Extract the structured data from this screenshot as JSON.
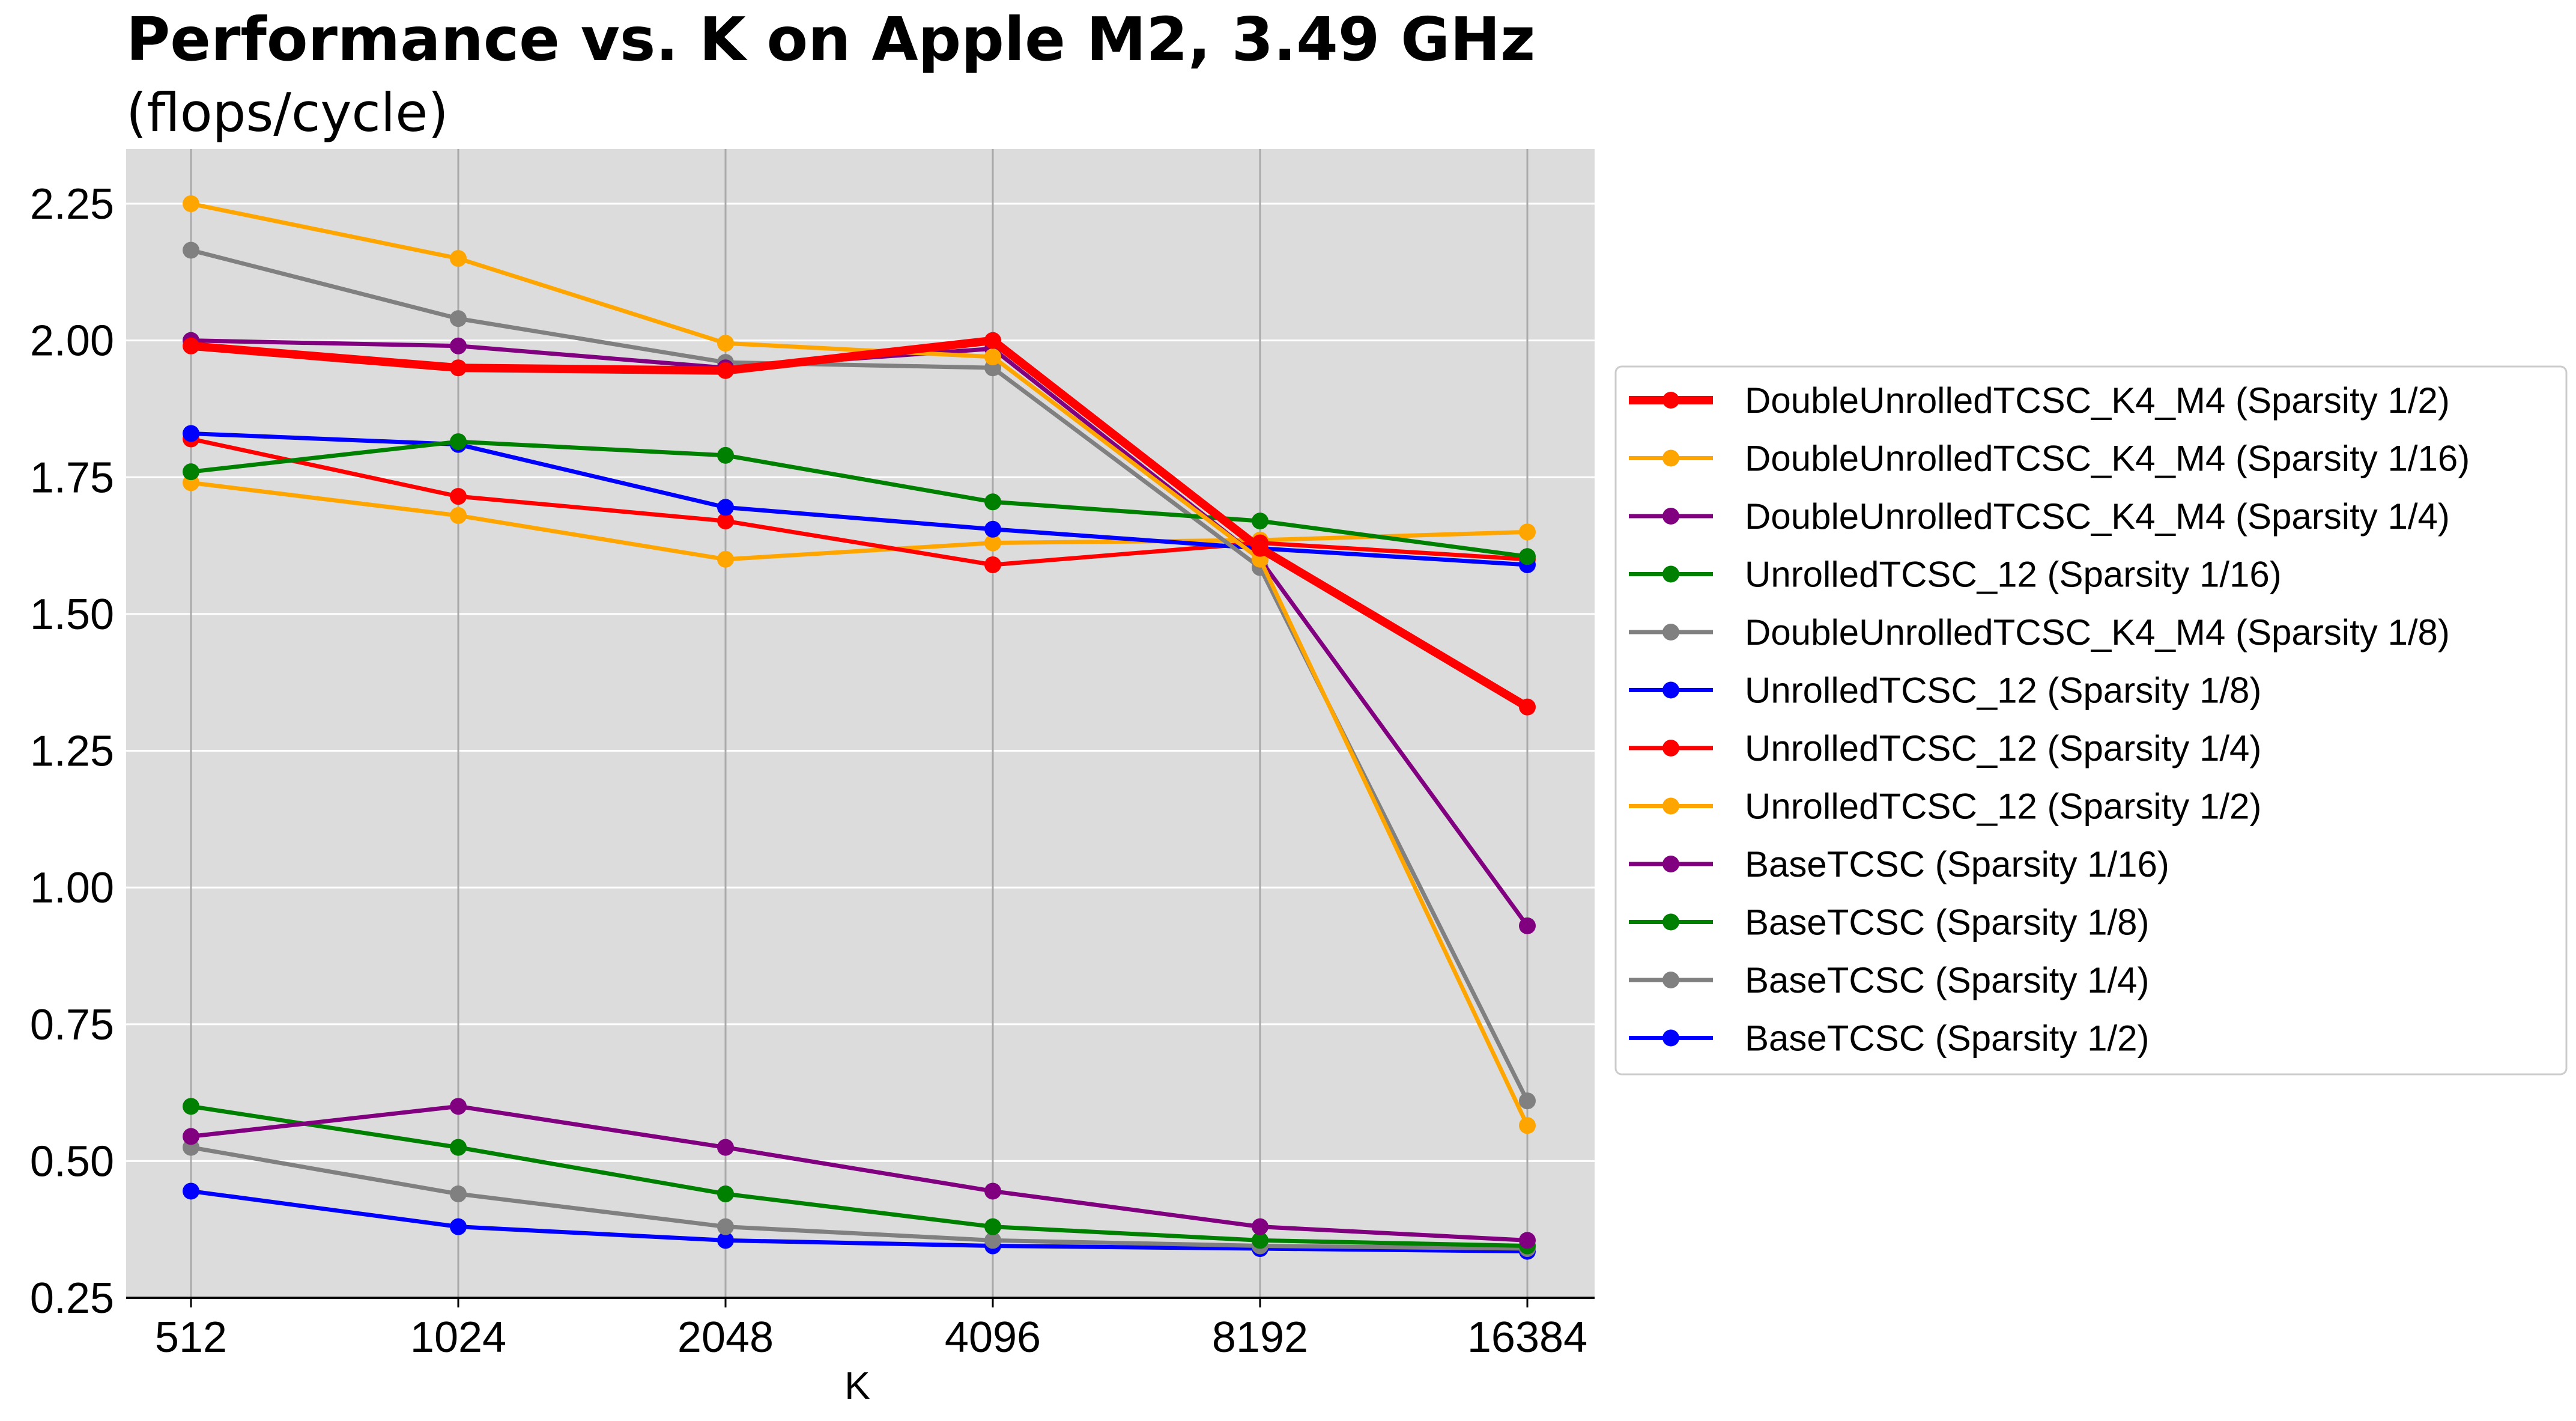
{
  "chart_data": {
    "type": "line",
    "title": "Performance vs.  K on Apple M2,  3.49 GHz",
    "subtitle": "(flops/cycle)",
    "xlabel": "K",
    "ylabel": "",
    "categories": [
      "512",
      "1024",
      "2048",
      "4096",
      "8192",
      "16384"
    ],
    "x_scale": "log2",
    "ylim": [
      0.25,
      2.35
    ],
    "yticks": [
      "0.25",
      "0.50",
      "0.75",
      "1.00",
      "1.25",
      "1.50",
      "1.75",
      "2.00",
      "2.25"
    ],
    "grid": "on",
    "legend_position": "right",
    "series": [
      {
        "name": "DoubleUnrolledTCSC_K4_M4 (Sparsity 1/2)",
        "color": "#ff0000",
        "bold": true,
        "values": [
          1.99,
          1.95,
          1.945,
          2.0,
          1.62,
          1.33
        ]
      },
      {
        "name": "DoubleUnrolledTCSC_K4_M4 (Sparsity 1/16)",
        "color": "#ffa500",
        "values": [
          2.25,
          2.15,
          1.995,
          1.97,
          1.6,
          0.565
        ]
      },
      {
        "name": "DoubleUnrolledTCSC_K4_M4 (Sparsity 1/4)",
        "color": "#800080",
        "values": [
          2.0,
          1.99,
          1.95,
          1.985,
          1.6,
          0.93
        ]
      },
      {
        "name": "UnrolledTCSC_12 (Sparsity 1/16)",
        "color": "#008000",
        "values": [
          1.76,
          1.815,
          1.79,
          1.705,
          1.67,
          1.605
        ]
      },
      {
        "name": "DoubleUnrolledTCSC_K4_M4 (Sparsity 1/8)",
        "color": "#808080",
        "values": [
          2.165,
          2.04,
          1.96,
          1.95,
          1.585,
          0.61
        ]
      },
      {
        "name": "UnrolledTCSC_12 (Sparsity 1/8)",
        "color": "#0000ff",
        "values": [
          1.83,
          1.81,
          1.695,
          1.655,
          1.62,
          1.59
        ]
      },
      {
        "name": "UnrolledTCSC_12 (Sparsity 1/4)",
        "color": "#ff0000",
        "values": [
          1.82,
          1.715,
          1.67,
          1.59,
          1.63,
          1.6
        ]
      },
      {
        "name": "UnrolledTCSC_12 (Sparsity 1/2)",
        "color": "#ffa500",
        "values": [
          1.74,
          1.68,
          1.6,
          1.63,
          1.635,
          1.65
        ]
      },
      {
        "name": "BaseTCSC (Sparsity 1/16)",
        "color": "#800080",
        "values": [
          0.545,
          0.6,
          0.525,
          0.445,
          0.38,
          0.355
        ]
      },
      {
        "name": "BaseTCSC (Sparsity 1/8)",
        "color": "#008000",
        "values": [
          0.6,
          0.525,
          0.44,
          0.38,
          0.355,
          0.345
        ]
      },
      {
        "name": "BaseTCSC (Sparsity 1/4)",
        "color": "#808080",
        "values": [
          0.525,
          0.44,
          0.38,
          0.355,
          0.345,
          0.34
        ]
      },
      {
        "name": "BaseTCSC (Sparsity 1/2)",
        "color": "#0000ff",
        "values": [
          0.445,
          0.38,
          0.355,
          0.345,
          0.34,
          0.335
        ]
      }
    ]
  }
}
